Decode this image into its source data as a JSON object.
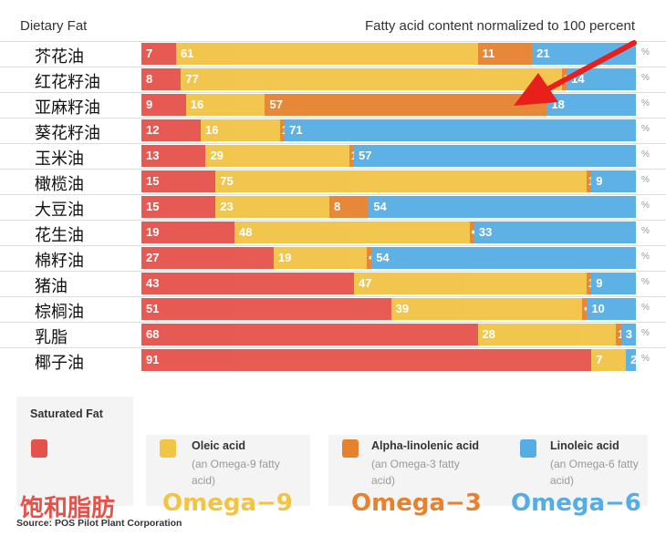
{
  "chart_data": {
    "type": "bar",
    "orientation": "horizontal-stacked",
    "title": "Fatty acid content normalized to 100 percent",
    "ylabel": "Dietary Fat",
    "unit_label": "%",
    "categories": [
      "芥花油",
      "红花籽油",
      "亚麻籽油",
      "葵花籽油",
      "玉米油",
      "橄榄油",
      "大豆油",
      "花生油",
      "棉籽油",
      "猪油",
      "棕榈油",
      "乳脂",
      "椰子油"
    ],
    "series": [
      {
        "name": "Saturated Fat",
        "color": "#e5524a",
        "values": [
          7,
          8,
          9,
          12,
          13,
          15,
          15,
          19,
          27,
          43,
          51,
          68,
          91
        ]
      },
      {
        "name": "Oleic acid",
        "color": "#f2c443",
        "values": [
          61,
          77,
          16,
          16,
          29,
          75,
          23,
          48,
          19,
          47,
          39,
          28,
          7
        ]
      },
      {
        "name": "Alpha-linolenic acid",
        "color": "#e6812e",
        "values": [
          11,
          1,
          57,
          1,
          1,
          1,
          8,
          1,
          1,
          1,
          1,
          1,
          0
        ],
        "labels": [
          "11",
          "1",
          "57",
          "1",
          "1",
          "1",
          "8",
          "•",
          "•",
          "1",
          "•",
          "1",
          ""
        ]
      },
      {
        "name": "Linoleic acid",
        "color": "#55ade3",
        "values": [
          21,
          14,
          18,
          71,
          57,
          9,
          54,
          33,
          54,
          9,
          10,
          3,
          2
        ]
      }
    ],
    "xlim": [
      0,
      100
    ]
  },
  "legend": {
    "sat": {
      "title": "Saturated Fat",
      "big": "饱和脂肪"
    },
    "o9": {
      "title": "Oleic acid",
      "sub": "(an Omega-9 fatty acid)",
      "big": "Omega−9"
    },
    "o3": {
      "title": "Alpha-linolenic acid",
      "sub": "(an Omega-3 fatty acid)",
      "big": "Omega−3"
    },
    "o6": {
      "title": "Linoleic acid",
      "sub": "(an Omega-6 fatty acid)",
      "big": "Omega−6"
    }
  },
  "source": "Source: POS Pilot Plant Corporation"
}
